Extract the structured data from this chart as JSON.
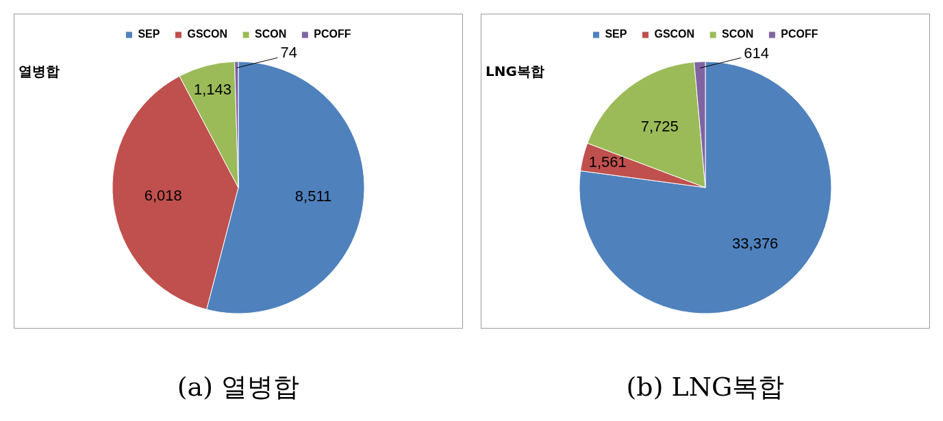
{
  "chart_data": [
    {
      "type": "pie",
      "title": "열병합",
      "categories": [
        "SEP",
        "GSCON",
        "SCON",
        "PCOFF"
      ],
      "values": [
        8511,
        6018,
        1143,
        74
      ],
      "colors": [
        "#4f81bd",
        "#c0504d",
        "#9bbb59",
        "#8064a2"
      ],
      "legend": "top",
      "value_labels": [
        "8,511",
        "6,018",
        "1,143",
        "74"
      ],
      "annotations": [
        "(a) 열병합"
      ]
    },
    {
      "type": "pie",
      "title": "LNG복합",
      "categories": [
        "SEP",
        "GSCON",
        "SCON",
        "PCOFF"
      ],
      "values": [
        33376,
        1561,
        7725,
        614
      ],
      "colors": [
        "#4f81bd",
        "#c0504d",
        "#9bbb59",
        "#8064a2"
      ],
      "legend": "top",
      "value_labels": [
        "33,376",
        "1,561",
        "7,725",
        "614"
      ],
      "annotations": [
        "(b) LNG복합"
      ]
    }
  ]
}
